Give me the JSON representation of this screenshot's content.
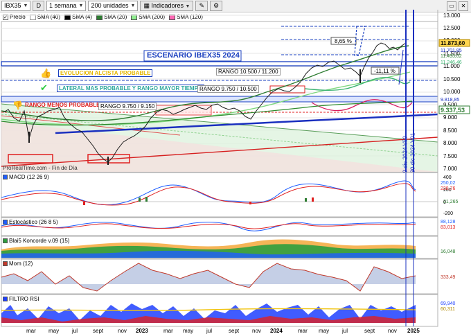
{
  "toolbar": {
    "symbol": "IBX35",
    "mode": "D",
    "period": "1 semana",
    "units": "200 unidades",
    "indicators": "Indicadores"
  },
  "legend": {
    "price": "Precio",
    "sma40": "SMA (40)",
    "sma4": "SMA (4)",
    "sma20": "SMA (20)",
    "sma200": "SMA (200)",
    "sma120": "SMA (120)"
  },
  "annotations": {
    "scenario": "ESCENARIO IBEX35 2024",
    "bullish": "EVOLUCION ALCISTA PROBABLE",
    "range_bull": "RANGO 10.500 / 11.200",
    "lateral": "LATERAL MAS PROBABLE Y RANGO MAYOR TIEMPO",
    "range_lat": "RANGO 9.750 / 10.500",
    "less_prob": "RANGO MENOS PROBABLE",
    "range_low": "RANGO 9.750 / 9.150",
    "pct_up": "8,65 %",
    "pct_down": "-11,11 %",
    "source": "ProRealTime.com - Fin de Día",
    "vline1": "9 dic 2024 V50",
    "vline2": "30 dic 2024 V01"
  },
  "price_axis": {
    "ticks": [
      "13.000",
      "12.500",
      "12.000",
      "11.500",
      "11.000",
      "10.500",
      "10.000",
      "9.500",
      "9.000",
      "8.500",
      "8.000",
      "7.500",
      "7.000"
    ],
    "tag_last": "11.873,60",
    "tag_1": "11.701,85",
    "tag_2": "11.493,02",
    "tag_3": "11.246,46",
    "tag_4": "9.818,85",
    "tag_5": "9.337,53"
  },
  "panels": {
    "macd": {
      "title": "MACD (12 26 9)",
      "ticks": [
        "400",
        "200",
        "0",
        "-200"
      ],
      "v1": "250,02",
      "v2": "228,76",
      "v3": "21,265"
    },
    "stoch": {
      "title": "Estocástico (26 8 5)",
      "v1": "88,128",
      "v2": "83,013"
    },
    "blai": {
      "title": "Blai5 Koncorde v.09 (15)",
      "v1": "16,048"
    },
    "mom": {
      "title": "Mom (12)",
      "v1": "333,49"
    },
    "rsi": {
      "title": "FILTRO RSI",
      "v1": "69,940",
      "v2": "60,311"
    }
  },
  "time_axis": [
    "mar",
    "may",
    "jul",
    "sept",
    "nov",
    "2023",
    "mar",
    "may",
    "jul",
    "sept",
    "nov",
    "2024",
    "mar",
    "may",
    "jul",
    "sept",
    "nov",
    "2025"
  ],
  "chart_data": {
    "type": "line",
    "title": "IBX35",
    "x": [
      "2022-02",
      "2022-04",
      "2022-06",
      "2022-08",
      "2022-10",
      "2022-12",
      "2023-02",
      "2023-04",
      "2023-06",
      "2023-08",
      "2023-10",
      "2023-12",
      "2024-02",
      "2024-04",
      "2024-06",
      "2024-08",
      "2024-10",
      "2024-12"
    ],
    "series": [
      {
        "name": "Precio",
        "values": [
          8500,
          8400,
          8200,
          7700,
          7600,
          8300,
          9100,
          9300,
          9400,
          9500,
          9200,
          10000,
          10300,
          11000,
          11100,
          10800,
          11800,
          11870
        ]
      },
      {
        "name": "SMA (40)",
        "values": [
          8700,
          8500,
          8300,
          8100,
          8000,
          8150,
          8600,
          8950,
          9200,
          9300,
          9350,
          9600,
          9950,
          10400,
          10800,
          10900,
          11300,
          11490
        ]
      },
      {
        "name": "SMA (200)",
        "values": [
          8500,
          8450,
          8400,
          8350,
          8300,
          8350,
          8450,
          8600,
          8700,
          8800,
          8850,
          8900,
          9000,
          9100,
          9200,
          9250,
          9300,
          9340
        ]
      }
    ],
    "ylim": [
      7000,
      13000
    ]
  }
}
